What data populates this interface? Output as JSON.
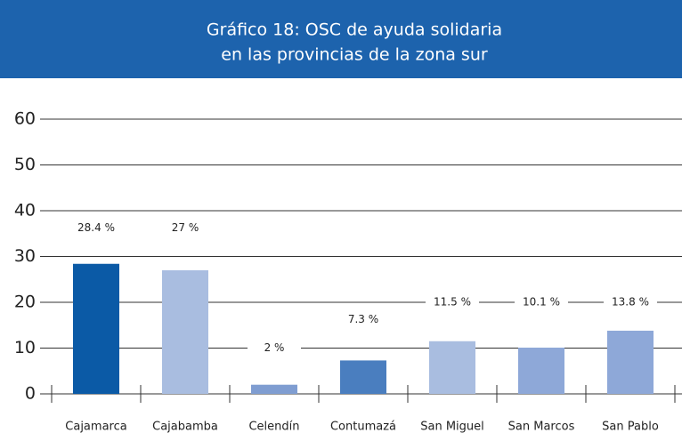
{
  "chart_data": {
    "type": "bar",
    "title": [
      "Gráfico 18: OSC de ayuda solidaria",
      "en las provincias de la zona sur"
    ],
    "categories": [
      "Cajamarca",
      "Cajabamba",
      "Celendín",
      "Contumazá",
      "San Miguel",
      "San Marcos",
      "San Pablo"
    ],
    "values": [
      28.4,
      27,
      2,
      7.3,
      11.5,
      10.1,
      13.8
    ],
    "value_labels": [
      "28.4 %",
      "27 %",
      "2 %",
      "7.3 %",
      "11.5 %",
      "10.1 %",
      "13.8 %"
    ],
    "colors": [
      "#0b5aa6",
      "#a9bde0",
      "#7f9dd1",
      "#4a7ebf",
      "#a9bde0",
      "#8ea8d8",
      "#8ea8d8"
    ],
    "ylim": [
      0,
      60
    ],
    "yticks": [
      0,
      10,
      20,
      30,
      40,
      50,
      60
    ],
    "grid": true
  }
}
